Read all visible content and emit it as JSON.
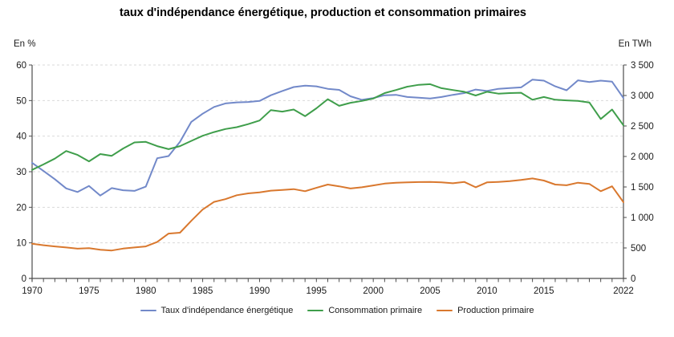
{
  "title": "taux d'indépendance énergétique, production et consommation primaires",
  "colors": {
    "taux": "#7289c9",
    "consommation": "#3f9e4b",
    "production": "#d9782e",
    "grid": "#d9d9d9",
    "axis": "#4d4d4d",
    "text": "#1a1a1a"
  },
  "left_axis": {
    "label": "En %",
    "max": 60,
    "ticks": [
      {
        "v": 0,
        "label": "0"
      },
      {
        "v": 10,
        "label": "10"
      },
      {
        "v": 20,
        "label": "20"
      },
      {
        "v": 30,
        "label": "30"
      },
      {
        "v": 40,
        "label": "40"
      },
      {
        "v": 50,
        "label": "50"
      },
      {
        "v": 60,
        "label": "60"
      }
    ]
  },
  "right_axis": {
    "label": "En TWh",
    "max": 3500,
    "ticks": [
      {
        "v": 0,
        "label": "0"
      },
      {
        "v": 500,
        "label": "500"
      },
      {
        "v": 1000,
        "label": "1 000"
      },
      {
        "v": 1500,
        "label": "1 500"
      },
      {
        "v": 2000,
        "label": "2 000"
      },
      {
        "v": 2500,
        "label": "2 500"
      },
      {
        "v": 3000,
        "label": "3 000"
      },
      {
        "v": 3500,
        "label": "3 500"
      }
    ]
  },
  "x_axis": {
    "start": 1970,
    "end": 2022,
    "labeled_years": [
      1970,
      1975,
      1980,
      1985,
      1990,
      1995,
      2000,
      2005,
      2010,
      2015,
      2022
    ]
  },
  "chart_data": {
    "type": "line",
    "title": "taux d'indépendance énergétique, production et consommation primaires",
    "grid": "dashed horizontal",
    "legend_position": "bottom",
    "x": [
      1970,
      1971,
      1972,
      1973,
      1974,
      1975,
      1976,
      1977,
      1978,
      1979,
      1980,
      1981,
      1982,
      1983,
      1984,
      1985,
      1986,
      1987,
      1988,
      1989,
      1990,
      1991,
      1992,
      1993,
      1994,
      1995,
      1996,
      1997,
      1998,
      1999,
      2000,
      2001,
      2002,
      2003,
      2004,
      2005,
      2006,
      2007,
      2008,
      2009,
      2010,
      2011,
      2012,
      2013,
      2014,
      2015,
      2016,
      2017,
      2018,
      2019,
      2020,
      2021,
      2022
    ],
    "series": [
      {
        "name": "Taux d'indépendance énergétique",
        "axis": "left",
        "unit": "%",
        "color": "#7289c9",
        "values": [
          32.5,
          30.2,
          27.9,
          25.3,
          24.3,
          26.0,
          23.3,
          25.4,
          24.8,
          24.6,
          25.8,
          33.8,
          34.4,
          38.4,
          44.0,
          46.3,
          48.2,
          49.2,
          49.5,
          49.6,
          49.9,
          51.5,
          52.7,
          53.8,
          54.2,
          54.0,
          53.3,
          53.0,
          51.2,
          50.2,
          50.7,
          51.5,
          51.6,
          51.0,
          50.8,
          50.6,
          51.0,
          51.6,
          52.1,
          53.1,
          52.7,
          53.3,
          53.5,
          53.7,
          55.9,
          55.6,
          54.0,
          52.9,
          55.7,
          55.2,
          55.6,
          55.3,
          50.7
        ]
      },
      {
        "name": "Consommation primaire",
        "axis": "right",
        "unit": "TWh",
        "color": "#3f9e4b",
        "values": [
          1780,
          1870,
          1965,
          2090,
          2025,
          1920,
          2040,
          2010,
          2130,
          2230,
          2240,
          2170,
          2120,
          2170,
          2255,
          2340,
          2400,
          2450,
          2480,
          2530,
          2590,
          2760,
          2735,
          2770,
          2660,
          2790,
          2940,
          2830,
          2880,
          2910,
          2950,
          3040,
          3090,
          3145,
          3175,
          3185,
          3120,
          3090,
          3060,
          3000,
          3060,
          3030,
          3040,
          3045,
          2930,
          2975,
          2930,
          2920,
          2910,
          2885,
          2615,
          2770,
          2510
        ]
      },
      {
        "name": "Production primaire",
        "axis": "right",
        "unit": "TWh",
        "color": "#d9782e",
        "values": [
          570,
          545,
          525,
          508,
          488,
          498,
          470,
          458,
          490,
          508,
          525,
          598,
          735,
          750,
          945,
          1130,
          1255,
          1300,
          1365,
          1395,
          1410,
          1440,
          1450,
          1465,
          1430,
          1485,
          1540,
          1510,
          1475,
          1495,
          1525,
          1555,
          1570,
          1575,
          1580,
          1583,
          1575,
          1560,
          1583,
          1495,
          1575,
          1583,
          1595,
          1615,
          1640,
          1605,
          1540,
          1527,
          1570,
          1550,
          1430,
          1510,
          1250
        ]
      }
    ],
    "xlabel": "",
    "ylabel_left": "En %",
    "ylabel_right": "En TWh",
    "ylim_left": [
      0,
      60
    ],
    "ylim_right": [
      0,
      3500
    ]
  }
}
